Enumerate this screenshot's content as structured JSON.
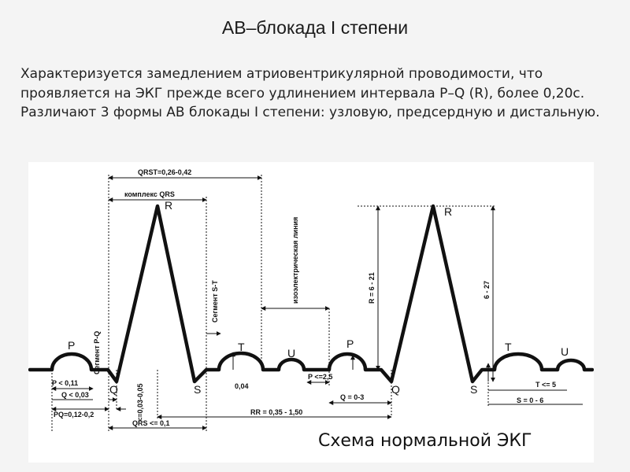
{
  "slide": {
    "title": "АВ–блокада I степени",
    "paragraph1": "Характеризуется замедлением атриовентрикулярной проводимости, что проявляется на ЭКГ прежде всего удлинением интервала P–Q (R), более 0,20с.",
    "paragraph2": "Различают 3 формы АВ блокады I степени: узловую, предсердную и дистальную."
  },
  "diagram": {
    "caption": "Схема нормальной ЭКГ",
    "waves": {
      "p1": "P",
      "q1": "Q",
      "r1": "R",
      "s1": "S",
      "t1": "T",
      "u1": "U",
      "p2": "P",
      "q2": "Q",
      "r2": "R",
      "s2": "S",
      "t2": "T",
      "u2": "U"
    },
    "labels": {
      "qrst": "QRST=0,26-0,42",
      "qrs_complex": "комплекс QRS",
      "isoline": "изоэлектрическая линия",
      "st_segment": "Сегмент S-T",
      "pq_segment": "Сегмент P-Q",
      "r_amp": "R = 6 - 21",
      "amp_6_27": "6 - 27",
      "p_dur": "P < 0,11",
      "q_dur": "Q < 0,03",
      "pq_int": "PQ=0,12-0,2",
      "qrs_dur": "QRS <= 0,1",
      "r_range": "<=0,03-0,05",
      "t_amp": "0,04",
      "p_amp": "P <=2,5",
      "q_amp": "Q = 0-3",
      "rr": "RR = 0,35 - 1,50",
      "t_max": "T <= 5",
      "s_amp": "S = 0 - 6"
    }
  }
}
